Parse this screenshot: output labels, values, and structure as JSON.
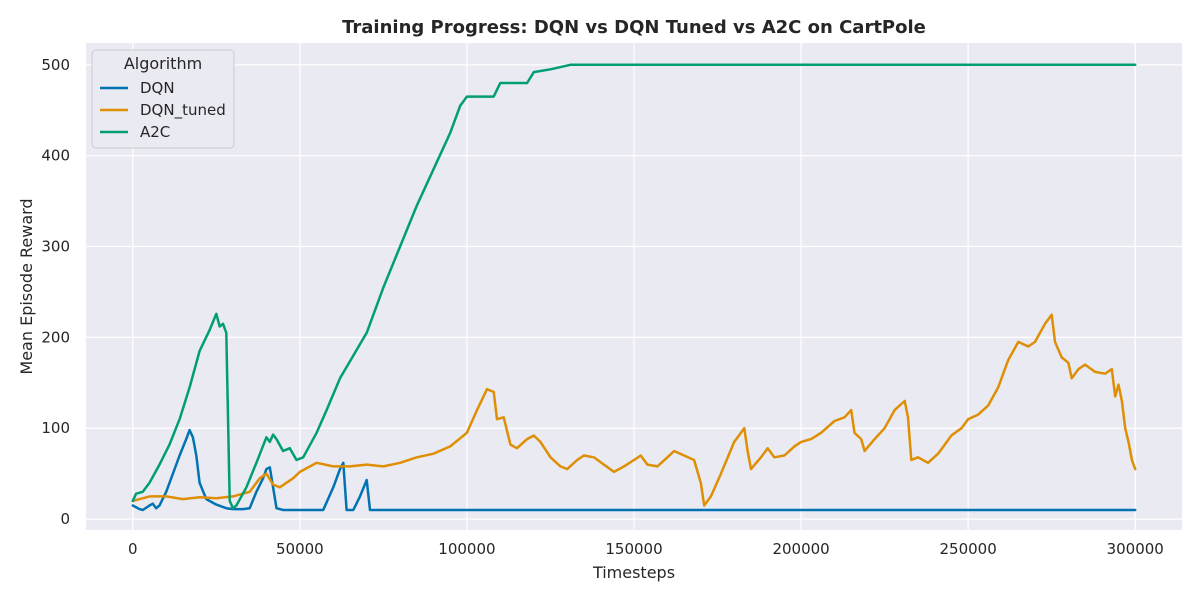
{
  "chart_data": {
    "type": "line",
    "title": "Training Progress: DQN vs DQN Tuned vs A2C on CartPole",
    "xlabel": "Timesteps",
    "ylabel": "Mean Episode Reward",
    "xlim": [
      -14000,
      314000
    ],
    "ylim": [
      -12,
      524
    ],
    "xticks": [
      0,
      50000,
      100000,
      150000,
      200000,
      250000,
      300000
    ],
    "xtick_labels": [
      "0",
      "50000",
      "100000",
      "150000",
      "200000",
      "250000",
      "300000"
    ],
    "yticks": [
      0,
      100,
      200,
      300,
      400,
      500
    ],
    "ytick_labels": [
      "0",
      "100",
      "200",
      "300",
      "400",
      "500"
    ],
    "grid": true,
    "legend": {
      "title": "Algorithm",
      "position": "top-left"
    },
    "background": "#eaeaf2",
    "series": [
      {
        "name": "DQN",
        "color": "#0173b2",
        "points": [
          [
            0,
            15
          ],
          [
            2000,
            11
          ],
          [
            3000,
            10
          ],
          [
            5000,
            15
          ],
          [
            6000,
            17
          ],
          [
            7000,
            12
          ],
          [
            8000,
            15
          ],
          [
            10000,
            30
          ],
          [
            12000,
            50
          ],
          [
            14000,
            70
          ],
          [
            16000,
            88
          ],
          [
            17000,
            98
          ],
          [
            18000,
            90
          ],
          [
            19000,
            70
          ],
          [
            20000,
            40
          ],
          [
            22000,
            22
          ],
          [
            25000,
            16
          ],
          [
            28000,
            12
          ],
          [
            30000,
            11
          ],
          [
            33000,
            11
          ],
          [
            35000,
            12
          ],
          [
            37000,
            30
          ],
          [
            39000,
            45
          ],
          [
            40000,
            55
          ],
          [
            41000,
            57
          ],
          [
            42000,
            35
          ],
          [
            43000,
            12
          ],
          [
            45000,
            10
          ],
          [
            50000,
            10
          ],
          [
            57000,
            10
          ],
          [
            60000,
            35
          ],
          [
            62000,
            55
          ],
          [
            63000,
            62
          ],
          [
            64000,
            10
          ],
          [
            66000,
            10
          ],
          [
            68000,
            25
          ],
          [
            70000,
            43
          ],
          [
            71000,
            10
          ],
          [
            80000,
            10
          ],
          [
            100000,
            10
          ],
          [
            200000,
            10
          ],
          [
            300000,
            10
          ]
        ]
      },
      {
        "name": "DQN_tuned",
        "color": "#de8f05",
        "points": [
          [
            0,
            20
          ],
          [
            5000,
            25
          ],
          [
            10000,
            25
          ],
          [
            15000,
            22
          ],
          [
            20000,
            24
          ],
          [
            25000,
            23
          ],
          [
            30000,
            25
          ],
          [
            35000,
            30
          ],
          [
            38000,
            45
          ],
          [
            40000,
            50
          ],
          [
            42000,
            38
          ],
          [
            44000,
            35
          ],
          [
            48000,
            45
          ],
          [
            50000,
            52
          ],
          [
            55000,
            62
          ],
          [
            60000,
            58
          ],
          [
            65000,
            58
          ],
          [
            70000,
            60
          ],
          [
            75000,
            58
          ],
          [
            80000,
            62
          ],
          [
            85000,
            68
          ],
          [
            90000,
            72
          ],
          [
            95000,
            80
          ],
          [
            100000,
            95
          ],
          [
            103000,
            120
          ],
          [
            106000,
            143
          ],
          [
            108000,
            140
          ],
          [
            109000,
            110
          ],
          [
            111000,
            112
          ],
          [
            113000,
            82
          ],
          [
            115000,
            78
          ],
          [
            118000,
            88
          ],
          [
            120000,
            92
          ],
          [
            122000,
            85
          ],
          [
            125000,
            68
          ],
          [
            128000,
            58
          ],
          [
            130000,
            55
          ],
          [
            133000,
            65
          ],
          [
            135000,
            70
          ],
          [
            138000,
            68
          ],
          [
            141000,
            60
          ],
          [
            144000,
            52
          ],
          [
            147000,
            58
          ],
          [
            150000,
            65
          ],
          [
            152000,
            70
          ],
          [
            154000,
            60
          ],
          [
            157000,
            58
          ],
          [
            160000,
            68
          ],
          [
            162000,
            75
          ],
          [
            165000,
            70
          ],
          [
            168000,
            65
          ],
          [
            170000,
            40
          ],
          [
            171000,
            15
          ],
          [
            173000,
            25
          ],
          [
            176000,
            50
          ],
          [
            180000,
            85
          ],
          [
            183000,
            100
          ],
          [
            184000,
            75
          ],
          [
            185000,
            55
          ],
          [
            188000,
            68
          ],
          [
            190000,
            78
          ],
          [
            192000,
            68
          ],
          [
            195000,
            70
          ],
          [
            198000,
            80
          ],
          [
            200000,
            85
          ],
          [
            203000,
            88
          ],
          [
            206000,
            95
          ],
          [
            210000,
            108
          ],
          [
            213000,
            112
          ],
          [
            215000,
            120
          ],
          [
            216000,
            95
          ],
          [
            218000,
            88
          ],
          [
            219000,
            75
          ],
          [
            222000,
            88
          ],
          [
            225000,
            100
          ],
          [
            228000,
            120
          ],
          [
            231000,
            130
          ],
          [
            232000,
            112
          ],
          [
            233000,
            65
          ],
          [
            235000,
            68
          ],
          [
            238000,
            62
          ],
          [
            241000,
            72
          ],
          [
            245000,
            92
          ],
          [
            248000,
            100
          ],
          [
            250000,
            110
          ],
          [
            253000,
            115
          ],
          [
            256000,
            125
          ],
          [
            259000,
            145
          ],
          [
            262000,
            175
          ],
          [
            265000,
            195
          ],
          [
            268000,
            190
          ],
          [
            270000,
            195
          ],
          [
            273000,
            215
          ],
          [
            275000,
            225
          ],
          [
            276000,
            195
          ],
          [
            278000,
            178
          ],
          [
            280000,
            172
          ],
          [
            281000,
            155
          ],
          [
            283000,
            165
          ],
          [
            285000,
            170
          ],
          [
            288000,
            162
          ],
          [
            291000,
            160
          ],
          [
            293000,
            165
          ],
          [
            294000,
            135
          ],
          [
            295000,
            148
          ],
          [
            296000,
            130
          ],
          [
            297000,
            100
          ],
          [
            298000,
            85
          ],
          [
            299000,
            65
          ],
          [
            300000,
            55
          ]
        ]
      },
      {
        "name": "A2C",
        "color": "#029e73",
        "points": [
          [
            0,
            20
          ],
          [
            1000,
            28
          ],
          [
            3000,
            30
          ],
          [
            5000,
            40
          ],
          [
            8000,
            60
          ],
          [
            11000,
            82
          ],
          [
            14000,
            110
          ],
          [
            17000,
            145
          ],
          [
            20000,
            185
          ],
          [
            23000,
            208
          ],
          [
            25000,
            226
          ],
          [
            26000,
            212
          ],
          [
            27000,
            215
          ],
          [
            28000,
            205
          ],
          [
            29000,
            20
          ],
          [
            30000,
            12
          ],
          [
            31000,
            15
          ],
          [
            34000,
            35
          ],
          [
            37000,
            62
          ],
          [
            40000,
            90
          ],
          [
            41000,
            85
          ],
          [
            42000,
            93
          ],
          [
            43000,
            88
          ],
          [
            45000,
            75
          ],
          [
            47000,
            78
          ],
          [
            49000,
            65
          ],
          [
            51000,
            68
          ],
          [
            55000,
            95
          ],
          [
            58000,
            120
          ],
          [
            62000,
            155
          ],
          [
            66000,
            180
          ],
          [
            70000,
            205
          ],
          [
            75000,
            255
          ],
          [
            80000,
            300
          ],
          [
            85000,
            345
          ],
          [
            90000,
            385
          ],
          [
            95000,
            425
          ],
          [
            98000,
            455
          ],
          [
            100000,
            465
          ],
          [
            108000,
            465
          ],
          [
            110000,
            480
          ],
          [
            118000,
            480
          ],
          [
            120000,
            492
          ],
          [
            125000,
            495
          ],
          [
            131000,
            500
          ],
          [
            300000,
            500
          ]
        ]
      }
    ]
  }
}
